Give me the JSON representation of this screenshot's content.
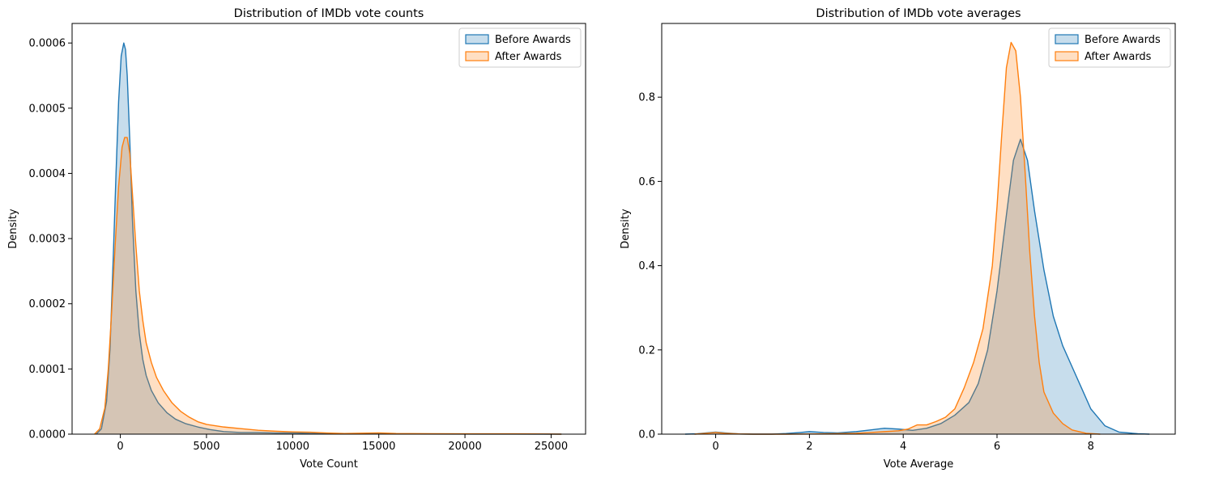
{
  "colors": {
    "before": "#1f77b4",
    "after": "#ff7f0e"
  },
  "chart_data": [
    {
      "type": "area",
      "title": "Distribution of IMDb vote counts",
      "xlabel": "Vote Count",
      "ylabel": "Density",
      "xlim": [
        -2800,
        27000
      ],
      "ylim": [
        0,
        0.00063
      ],
      "xticks": [
        0,
        5000,
        10000,
        15000,
        20000,
        25000
      ],
      "xtick_labels": [
        "0",
        "5000",
        "10000",
        "15000",
        "20000",
        "25000"
      ],
      "yticks": [
        0,
        0.0001,
        0.0002,
        0.0003,
        0.0004,
        0.0005,
        0.0006
      ],
      "ytick_labels": [
        "0.0000",
        "0.0001",
        "0.0002",
        "0.0003",
        "0.0004",
        "0.0005",
        "0.0006"
      ],
      "legend_position": "top-right",
      "grid": false,
      "series": [
        {
          "name": "Before Awards",
          "points": [
            [
              -1400,
              0
            ],
            [
              -1100,
              8e-06
            ],
            [
              -800,
              5e-05
            ],
            [
              -600,
              0.00013
            ],
            [
              -400,
              0.00028
            ],
            [
              -250,
              0.0004
            ],
            [
              -100,
              0.00051
            ],
            [
              50,
              0.00058
            ],
            [
              200,
              0.0006
            ],
            [
              300,
              0.00059
            ],
            [
              400,
              0.00055
            ],
            [
              550,
              0.00045
            ],
            [
              700,
              0.00033
            ],
            [
              900,
              0.00022
            ],
            [
              1100,
              0.000155
            ],
            [
              1300,
              0.000115
            ],
            [
              1500,
              9e-05
            ],
            [
              1800,
              6.7e-05
            ],
            [
              2200,
              4.8e-05
            ],
            [
              2700,
              3.3e-05
            ],
            [
              3200,
              2.3e-05
            ],
            [
              3800,
              1.6e-05
            ],
            [
              4500,
              1.1e-05
            ],
            [
              5200,
              7e-06
            ],
            [
              6000,
              4e-06
            ],
            [
              7000,
              2.5e-06
            ],
            [
              8000,
              2.5e-06
            ],
            [
              9000,
              1.8e-06
            ],
            [
              10000,
              2e-06
            ],
            [
              11000,
              1.2e-06
            ],
            [
              12000,
              8e-07
            ],
            [
              14000,
              4e-07
            ],
            [
              17000,
              2e-07
            ],
            [
              21000,
              1e-07
            ],
            [
              25600,
              0
            ]
          ]
        },
        {
          "name": "After Awards",
          "points": [
            [
              -1500,
              0
            ],
            [
              -1200,
              8e-06
            ],
            [
              -900,
              4e-05
            ],
            [
              -700,
              0.0001
            ],
            [
              -500,
              0.00019
            ],
            [
              -300,
              0.00029
            ],
            [
              -100,
              0.00038
            ],
            [
              100,
              0.00044
            ],
            [
              250,
              0.000455
            ],
            [
              400,
              0.000455
            ],
            [
              550,
              0.00043
            ],
            [
              700,
              0.00037
            ],
            [
              900,
              0.00029
            ],
            [
              1100,
              0.00022
            ],
            [
              1300,
              0.000175
            ],
            [
              1500,
              0.00014
            ],
            [
              1800,
              0.00011
            ],
            [
              2100,
              8.7e-05
            ],
            [
              2500,
              6.7e-05
            ],
            [
              3000,
              4.8e-05
            ],
            [
              3500,
              3.5e-05
            ],
            [
              4000,
              2.6e-05
            ],
            [
              4500,
              1.9e-05
            ],
            [
              5000,
              1.5e-05
            ],
            [
              5500,
              1.3e-05
            ],
            [
              6000,
              1.1e-05
            ],
            [
              7000,
              8.5e-06
            ],
            [
              8000,
              6e-06
            ],
            [
              9000,
              4.5e-06
            ],
            [
              10000,
              3.5e-06
            ],
            [
              11000,
              3e-06
            ],
            [
              12000,
              1.8e-06
            ],
            [
              13000,
              1e-06
            ],
            [
              14000,
              1.5e-06
            ],
            [
              15000,
              2e-06
            ],
            [
              16000,
              1e-06
            ],
            [
              18000,
              7e-07
            ],
            [
              20000,
              6e-07
            ],
            [
              22000,
              5e-07
            ],
            [
              24000,
              4e-07
            ],
            [
              25600,
              0
            ]
          ]
        }
      ]
    },
    {
      "type": "area",
      "title": "Distribution of IMDb vote averages",
      "xlabel": "Vote Average",
      "ylabel": "Density",
      "xlim": [
        -1.15,
        9.8
      ],
      "ylim": [
        0,
        0.975
      ],
      "xticks": [
        0,
        2,
        4,
        6,
        8
      ],
      "xtick_labels": [
        "0",
        "2",
        "4",
        "6",
        "8"
      ],
      "yticks": [
        0,
        0.2,
        0.4,
        0.6,
        0.8
      ],
      "ytick_labels": [
        "0.0",
        "0.2",
        "0.4",
        "0.6",
        "0.8"
      ],
      "legend_position": "top-right",
      "grid": false,
      "series": [
        {
          "name": "Before Awards",
          "points": [
            [
              -0.65,
              0
            ],
            [
              -0.4,
              0.0008
            ],
            [
              -0.2,
              0.003
            ],
            [
              0,
              0.005
            ],
            [
              0.2,
              0.003
            ],
            [
              0.5,
              0.0005
            ],
            [
              0.8,
              0
            ],
            [
              1.2,
              0
            ],
            [
              1.5,
              0.0015
            ],
            [
              1.8,
              0.004
            ],
            [
              2.0,
              0.006
            ],
            [
              2.3,
              0.004
            ],
            [
              2.6,
              0.003
            ],
            [
              3.0,
              0.006
            ],
            [
              3.3,
              0.01
            ],
            [
              3.6,
              0.014
            ],
            [
              3.9,
              0.012
            ],
            [
              4.2,
              0.009
            ],
            [
              4.5,
              0.014
            ],
            [
              4.8,
              0.025
            ],
            [
              5.1,
              0.045
            ],
            [
              5.4,
              0.075
            ],
            [
              5.6,
              0.12
            ],
            [
              5.8,
              0.2
            ],
            [
              6.0,
              0.34
            ],
            [
              6.2,
              0.52
            ],
            [
              6.35,
              0.65
            ],
            [
              6.5,
              0.7
            ],
            [
              6.65,
              0.65
            ],
            [
              6.8,
              0.53
            ],
            [
              7.0,
              0.39
            ],
            [
              7.2,
              0.28
            ],
            [
              7.4,
              0.21
            ],
            [
              7.6,
              0.16
            ],
            [
              7.8,
              0.11
            ],
            [
              8.0,
              0.06
            ],
            [
              8.3,
              0.02
            ],
            [
              8.6,
              0.005
            ],
            [
              9.0,
              0.001
            ],
            [
              9.25,
              0
            ]
          ]
        },
        {
          "name": "After Awards",
          "points": [
            [
              -0.45,
              0
            ],
            [
              -0.2,
              0.002
            ],
            [
              0,
              0.004
            ],
            [
              0.2,
              0.002
            ],
            [
              0.5,
              0.0005
            ],
            [
              0.8,
              0
            ],
            [
              1.5,
              0
            ],
            [
              2.0,
              0.0003
            ],
            [
              2.5,
              0.001
            ],
            [
              3.0,
              0.002
            ],
            [
              3.3,
              0.004
            ],
            [
              3.6,
              0.006
            ],
            [
              3.9,
              0.008
            ],
            [
              4.1,
              0.012
            ],
            [
              4.3,
              0.022
            ],
            [
              4.5,
              0.022
            ],
            [
              4.7,
              0.03
            ],
            [
              4.9,
              0.04
            ],
            [
              5.1,
              0.06
            ],
            [
              5.3,
              0.11
            ],
            [
              5.5,
              0.17
            ],
            [
              5.7,
              0.25
            ],
            [
              5.9,
              0.4
            ],
            [
              6.0,
              0.54
            ],
            [
              6.1,
              0.71
            ],
            [
              6.2,
              0.87
            ],
            [
              6.3,
              0.93
            ],
            [
              6.4,
              0.91
            ],
            [
              6.5,
              0.8
            ],
            [
              6.6,
              0.62
            ],
            [
              6.7,
              0.43
            ],
            [
              6.8,
              0.28
            ],
            [
              6.9,
              0.17
            ],
            [
              7.0,
              0.1
            ],
            [
              7.2,
              0.05
            ],
            [
              7.4,
              0.025
            ],
            [
              7.6,
              0.01
            ],
            [
              7.9,
              0.002
            ],
            [
              8.2,
              0
            ]
          ]
        }
      ]
    }
  ]
}
